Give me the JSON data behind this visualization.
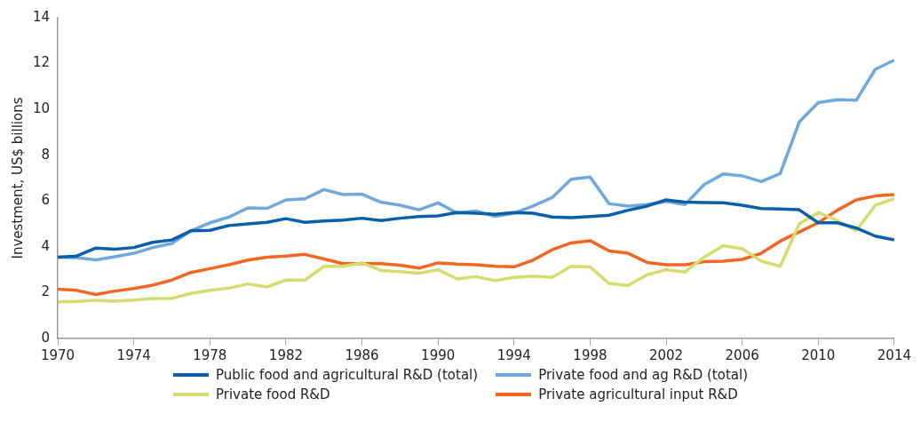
{
  "chart_data": {
    "type": "line",
    "ylabel": "Investment, US$ billions",
    "x": [
      1970,
      1971,
      1972,
      1973,
      1974,
      1975,
      1976,
      1977,
      1978,
      1979,
      1980,
      1981,
      1982,
      1983,
      1984,
      1985,
      1986,
      1987,
      1988,
      1989,
      1990,
      1991,
      1992,
      1993,
      1994,
      1995,
      1996,
      1997,
      1998,
      1999,
      2000,
      2001,
      2002,
      2003,
      2004,
      2005,
      2006,
      2007,
      2008,
      2009,
      2010,
      2011,
      2012,
      2013,
      2014
    ],
    "series": [
      {
        "name": "Public food and agricultural R&D (total)",
        "color": "#0a5fa8",
        "values": [
          3.55,
          3.6,
          3.95,
          3.9,
          3.97,
          4.2,
          4.3,
          4.7,
          4.72,
          4.93,
          5.0,
          5.07,
          5.23,
          5.07,
          5.13,
          5.17,
          5.25,
          5.15,
          5.25,
          5.32,
          5.35,
          5.5,
          5.47,
          5.42,
          5.5,
          5.47,
          5.3,
          5.27,
          5.32,
          5.38,
          5.6,
          5.78,
          6.05,
          5.95,
          5.93,
          5.92,
          5.82,
          5.67,
          5.65,
          5.62,
          5.05,
          5.05,
          4.82,
          4.47,
          4.3
        ]
      },
      {
        "name": "Private food and ag R&D (total)",
        "color": "#6fa8dc",
        "values": [
          3.55,
          3.53,
          3.43,
          3.57,
          3.72,
          3.97,
          4.15,
          4.7,
          5.05,
          5.3,
          5.7,
          5.68,
          6.05,
          6.1,
          6.5,
          6.28,
          6.3,
          5.95,
          5.82,
          5.62,
          5.92,
          5.48,
          5.57,
          5.33,
          5.47,
          5.78,
          6.15,
          6.95,
          7.05,
          5.88,
          5.78,
          5.85,
          5.98,
          5.85,
          6.72,
          7.18,
          7.1,
          6.85,
          7.2,
          9.45,
          10.3,
          10.42,
          10.4,
          11.75,
          12.15
        ]
      },
      {
        "name": "Private food R&D",
        "color": "#d4dc6e",
        "values": [
          1.6,
          1.62,
          1.67,
          1.63,
          1.68,
          1.75,
          1.75,
          1.97,
          2.1,
          2.2,
          2.38,
          2.25,
          2.55,
          2.55,
          3.15,
          3.15,
          3.3,
          2.97,
          2.92,
          2.85,
          3.0,
          2.6,
          2.7,
          2.52,
          2.67,
          2.72,
          2.67,
          3.15,
          3.12,
          2.4,
          2.32,
          2.78,
          3.0,
          2.9,
          3.55,
          4.05,
          3.92,
          3.38,
          3.15,
          5.0,
          5.5,
          5.15,
          4.7,
          5.82,
          6.1
        ]
      },
      {
        "name": "Private agricultural input R&D",
        "color": "#f26522",
        "values": [
          2.15,
          2.1,
          1.92,
          2.07,
          2.18,
          2.33,
          2.55,
          2.88,
          3.05,
          3.22,
          3.42,
          3.55,
          3.6,
          3.67,
          3.47,
          3.27,
          3.27,
          3.27,
          3.2,
          3.07,
          3.3,
          3.25,
          3.22,
          3.15,
          3.13,
          3.42,
          3.87,
          4.17,
          4.27,
          3.82,
          3.72,
          3.32,
          3.22,
          3.22,
          3.35,
          3.37,
          3.45,
          3.72,
          4.25,
          4.65,
          5.05,
          5.6,
          6.05,
          6.22,
          6.28
        ]
      }
    ],
    "xlim": [
      1970,
      2014
    ],
    "xticks": [
      1970,
      1974,
      1978,
      1982,
      1986,
      1990,
      1994,
      1998,
      2002,
      2006,
      2010,
      2014
    ],
    "ylim": [
      0,
      14
    ],
    "yticks": [
      0,
      2,
      4,
      6,
      8,
      10,
      12,
      14
    ],
    "grid": false,
    "legend": "bottom",
    "marker": "none",
    "line_style": "solid"
  }
}
